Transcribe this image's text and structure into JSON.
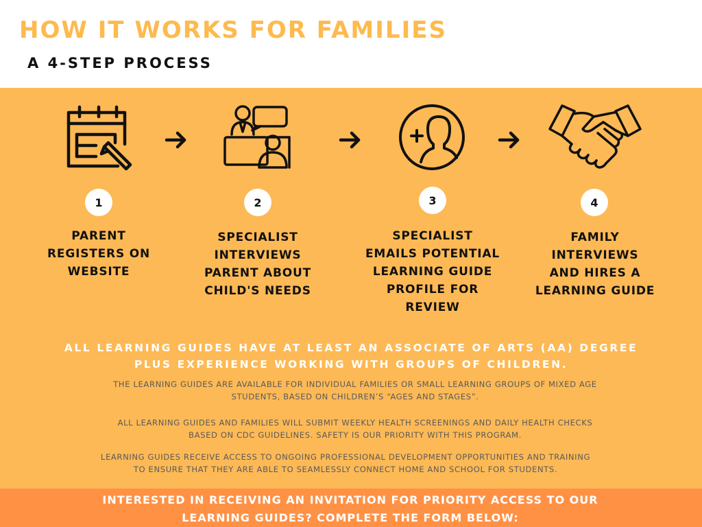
{
  "header": {
    "title": "HOW IT WORKS FOR FAMILIES",
    "subtitle": "A 4-STEP PROCESS"
  },
  "colors": {
    "title": "#FDBA4E",
    "panel": "#FDB955",
    "footer": "#FF9145",
    "icon_stroke": "#111111"
  },
  "steps": [
    {
      "number": "1",
      "icon": "calendar-pencil-icon",
      "lines": [
        "PARENT",
        "REGISTERS ON",
        "WEBSITE"
      ]
    },
    {
      "number": "2",
      "icon": "interview-icon",
      "lines": [
        "SPECIALIST",
        "INTERVIEWS",
        "PARENT ABOUT",
        "CHILD'S NEEDS"
      ]
    },
    {
      "number": "3",
      "icon": "add-user-icon",
      "lines": [
        "SPECIALIST",
        "EMAILS POTENTIAL",
        "LEARNING GUIDE",
        "PROFILE FOR",
        "REVIEW"
      ]
    },
    {
      "number": "4",
      "icon": "handshake-icon",
      "lines": [
        "FAMILY",
        "INTERVIEWS",
        "AND HIRES A",
        "LEARNING GUIDE"
      ]
    }
  ],
  "guides_note": {
    "lines": [
      "ALL LEARNING GUIDES HAVE AT LEAST AN ASSOCIATE OF ARTS (AA) DEGREE",
      "PLUS EXPERIENCE WORKING WITH GROUPS OF CHILDREN."
    ]
  },
  "paragraphs": [
    {
      "lines": [
        "THE LEARNING GUIDES ARE AVAILABLE FOR INDIVIDUAL FAMILIES OR SMALL LEARNING GROUPS OF MIXED AGE",
        "STUDENTS, BASED ON CHILDREN’S “AGES AND STAGES”."
      ]
    },
    {
      "lines": [
        "ALL LEARNING GUIDES AND FAMILIES WILL SUBMIT WEEKLY HEALTH SCREENINGS AND DAILY HEALTH CHECKS",
        "BASED ON CDC GUIDELINES. SAFETY IS OUR PRIORITY WITH THIS PROGRAM."
      ]
    },
    {
      "lines": [
        "LEARNING GUIDES RECEIVE ACCESS TO ONGOING PROFESSIONAL DEVELOPMENT OPPORTUNITIES AND TRAINING",
        "TO ENSURE THAT THEY ARE ABLE TO SEAMLESSLY CONNECT HOME AND SCHOOL FOR STUDENTS."
      ]
    }
  ],
  "footer": {
    "lines": [
      "INTERESTED IN RECEIVING AN INVITATION FOR PRIORITY ACCESS TO OUR",
      "LEARNING GUIDES? COMPLETE THE FORM BELOW:"
    ]
  }
}
